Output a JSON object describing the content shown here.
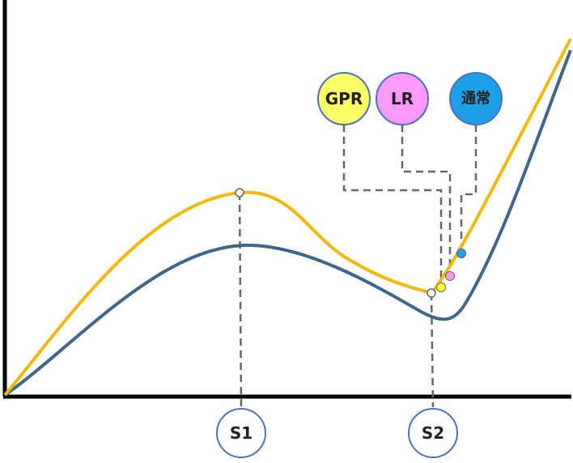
{
  "callouts": [
    {
      "label": "GPR"
    },
    {
      "label": "LR"
    },
    {
      "label": "通常"
    }
  ],
  "markers": [
    {
      "label": "S1"
    },
    {
      "label": "S2"
    }
  ]
}
